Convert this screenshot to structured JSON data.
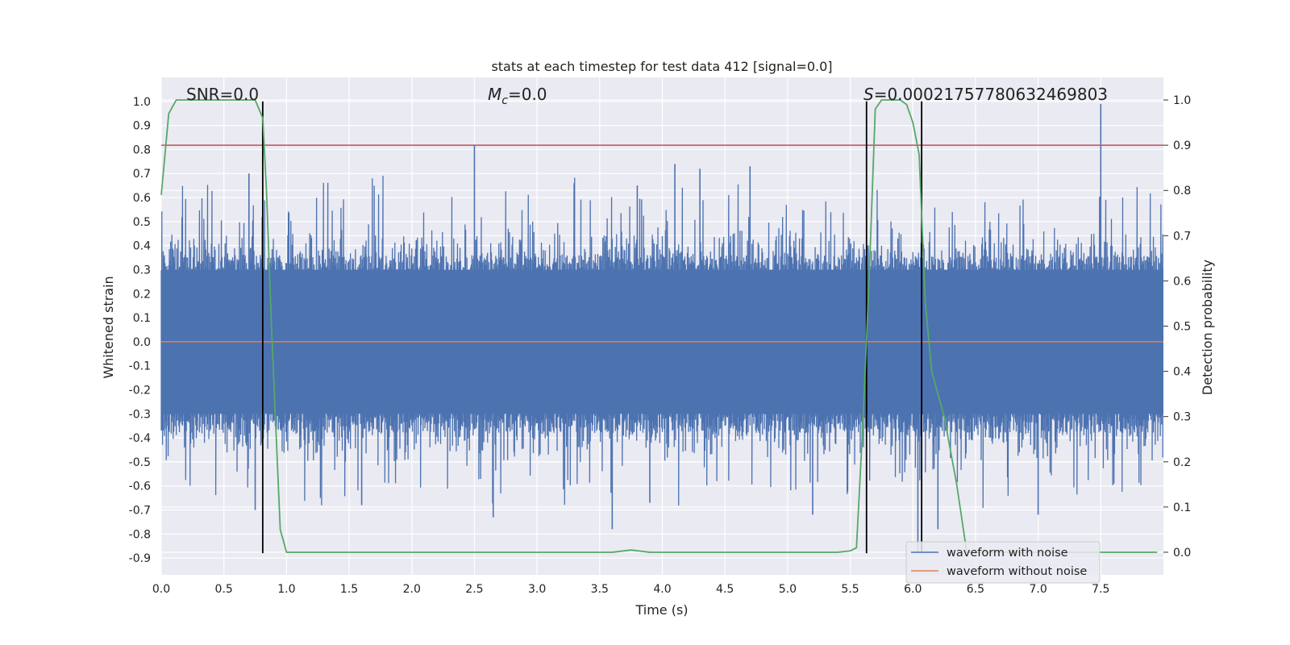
{
  "chart_data": {
    "type": "line",
    "title": "stats at each timestep for test data 412 [signal=0.0]",
    "xlabel": "Time (s)",
    "ylabel": "Whitened strain",
    "ylabel_right": "Detection probability",
    "xlim": [
      0.0,
      8.0
    ],
    "ylim": [
      -0.97,
      1.1
    ],
    "ylim_right": [
      -0.05,
      1.05
    ],
    "x_ticks": [
      "0.0",
      "0.5",
      "1.0",
      "1.5",
      "2.0",
      "2.5",
      "3.0",
      "3.5",
      "4.0",
      "4.5",
      "5.0",
      "5.5",
      "6.0",
      "6.5",
      "7.0",
      "7.5"
    ],
    "y_ticks": [
      "1.0",
      "0.9",
      "0.8",
      "0.7",
      "0.6",
      "0.5",
      "0.4",
      "0.3",
      "0.2",
      "0.1",
      "0.0",
      "-0.1",
      "-0.2",
      "-0.3",
      "-0.4",
      "-0.5",
      "-0.6",
      "-0.7",
      "-0.8",
      "-0.9"
    ],
    "y_ticks_right": [
      "1.0",
      "0.9",
      "0.8",
      "0.7",
      "0.6",
      "0.5",
      "0.4",
      "0.3",
      "0.2",
      "0.1",
      "0.0"
    ],
    "grid": true,
    "legend_position": "lower-right",
    "annotations": {
      "snr": "SNR=0.0",
      "mc_symbol": "M",
      "mc_sub": "c",
      "mc_value": "=0.0",
      "s_symbol": "S",
      "s_value": "=0.00021757780632469803"
    },
    "series": [
      {
        "name": "waveform with noise",
        "color": "#4c72b0",
        "axis": "left",
        "description_values": "dense noise, roughly uniform amplitude",
        "core_range": [
          -0.3,
          0.3
        ],
        "notable_peaks": [
          {
            "x": 7.5,
            "y": 0.99
          },
          {
            "x": 4.1,
            "y": 0.74
          },
          {
            "x": 6.04,
            "y": -0.88
          },
          {
            "x": 3.6,
            "y": -0.78
          },
          {
            "x": 6.2,
            "y": -0.78
          },
          {
            "x": 2.5,
            "y": 0.82
          },
          {
            "x": 4.3,
            "y": 0.72
          },
          {
            "x": 4.7,
            "y": 0.73
          },
          {
            "x": 7.0,
            "y": -0.72
          },
          {
            "x": 5.2,
            "y": -0.72
          },
          {
            "x": 0.75,
            "y": -0.7
          },
          {
            "x": 1.6,
            "y": -0.68
          },
          {
            "x": 2.65,
            "y": -0.73
          },
          {
            "x": 3.9,
            "y": -0.67
          },
          {
            "x": 0.7,
            "y": 0.7
          },
          {
            "x": 3.8,
            "y": 0.65
          }
        ]
      },
      {
        "name": "waveform without noise",
        "color": "#dd8452",
        "axis": "left",
        "x": [
          0.0,
          8.0
        ],
        "y": [
          0.0,
          0.0
        ]
      },
      {
        "name": "",
        "color": "#55a868",
        "axis": "right",
        "x": [
          0.0,
          0.06,
          0.12,
          0.2,
          0.5,
          0.75,
          0.81,
          0.84,
          0.88,
          0.95,
          1.0,
          1.1,
          2.0,
          3.0,
          3.6,
          3.75,
          3.9,
          4.5,
          5.0,
          5.4,
          5.5,
          5.55,
          5.6,
          5.65,
          5.7,
          5.75,
          5.8,
          5.9,
          5.95,
          6.0,
          6.05,
          6.1,
          6.15,
          6.25,
          6.35,
          6.43,
          6.5,
          7.0,
          7.5,
          7.95
        ],
        "y": [
          0.79,
          0.97,
          1.0,
          1.0,
          1.0,
          1.0,
          0.96,
          0.8,
          0.5,
          0.05,
          0.0,
          0.0,
          0.0,
          0.0,
          0.0,
          0.005,
          0.0,
          0.0,
          0.0,
          0.0,
          0.003,
          0.01,
          0.28,
          0.6,
          0.98,
          1.0,
          1.0,
          1.0,
          0.99,
          0.95,
          0.88,
          0.55,
          0.4,
          0.3,
          0.15,
          0.0,
          0.0,
          0.0,
          0.0,
          0.0
        ]
      }
    ],
    "threshold": {
      "axis": "right",
      "y": 0.9,
      "color": "#c44e52"
    },
    "vertical_markers": {
      "x": [
        0.81,
        5.63,
        6.07
      ],
      "y_from": -0.88,
      "y_to": 1.0,
      "color": "#000000"
    }
  }
}
